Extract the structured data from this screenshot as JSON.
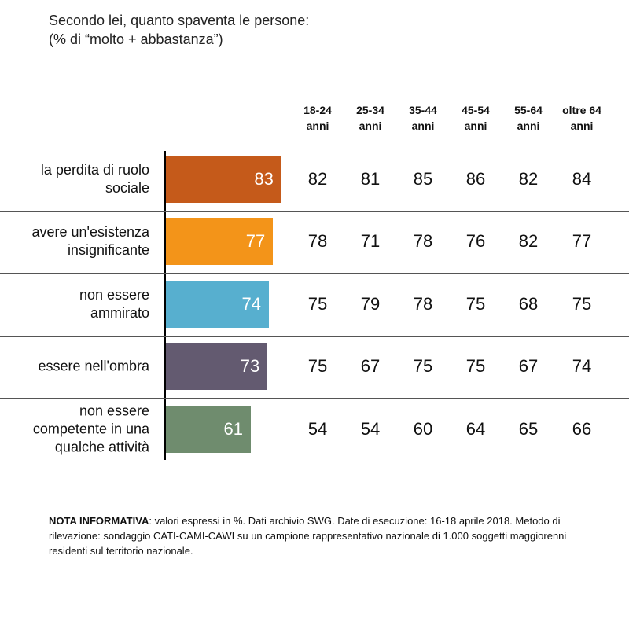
{
  "chart_data": {
    "type": "bar",
    "title": "Secondo lei, quanto spaventa le persone:",
    "subtitle": "(% di “molto + abbastanza”)",
    "categories": [
      "la perdita di ruolo\nsociale",
      "avere un'esistenza\ninsignificante",
      "non essere\nammirato",
      "essere nell'ombra",
      "non essere\ncompetente in una\nqualche attività"
    ],
    "values": [
      83,
      77,
      74,
      73,
      61
    ],
    "colors": [
      "#c55a1a",
      "#f39419",
      "#57afcf",
      "#635a70",
      "#6f8c6e"
    ],
    "table": {
      "columns": [
        "18-24\nanni",
        "25-34\nanni",
        "35-44\nanni",
        "45-54\nanni",
        "55-64\nanni",
        "oltre 64\nanni"
      ],
      "rows": [
        [
          82,
          81,
          85,
          86,
          82,
          84
        ],
        [
          78,
          71,
          78,
          76,
          82,
          77
        ],
        [
          75,
          79,
          78,
          75,
          68,
          75
        ],
        [
          75,
          67,
          75,
          75,
          67,
          74
        ],
        [
          54,
          54,
          60,
          64,
          65,
          66
        ]
      ]
    }
  },
  "note": {
    "label": "NOTA INFORMATIVA",
    "text": ": valori espressi in %. Dati archivio SWG. Date di esecuzione: 16-18 aprile 2018. Metodo di rilevazione: sondaggio CATI-CAMI-CAWI su un campione rappresentativo nazionale di 1.000 soggetti maggiorenni residenti sul territorio nazionale."
  }
}
